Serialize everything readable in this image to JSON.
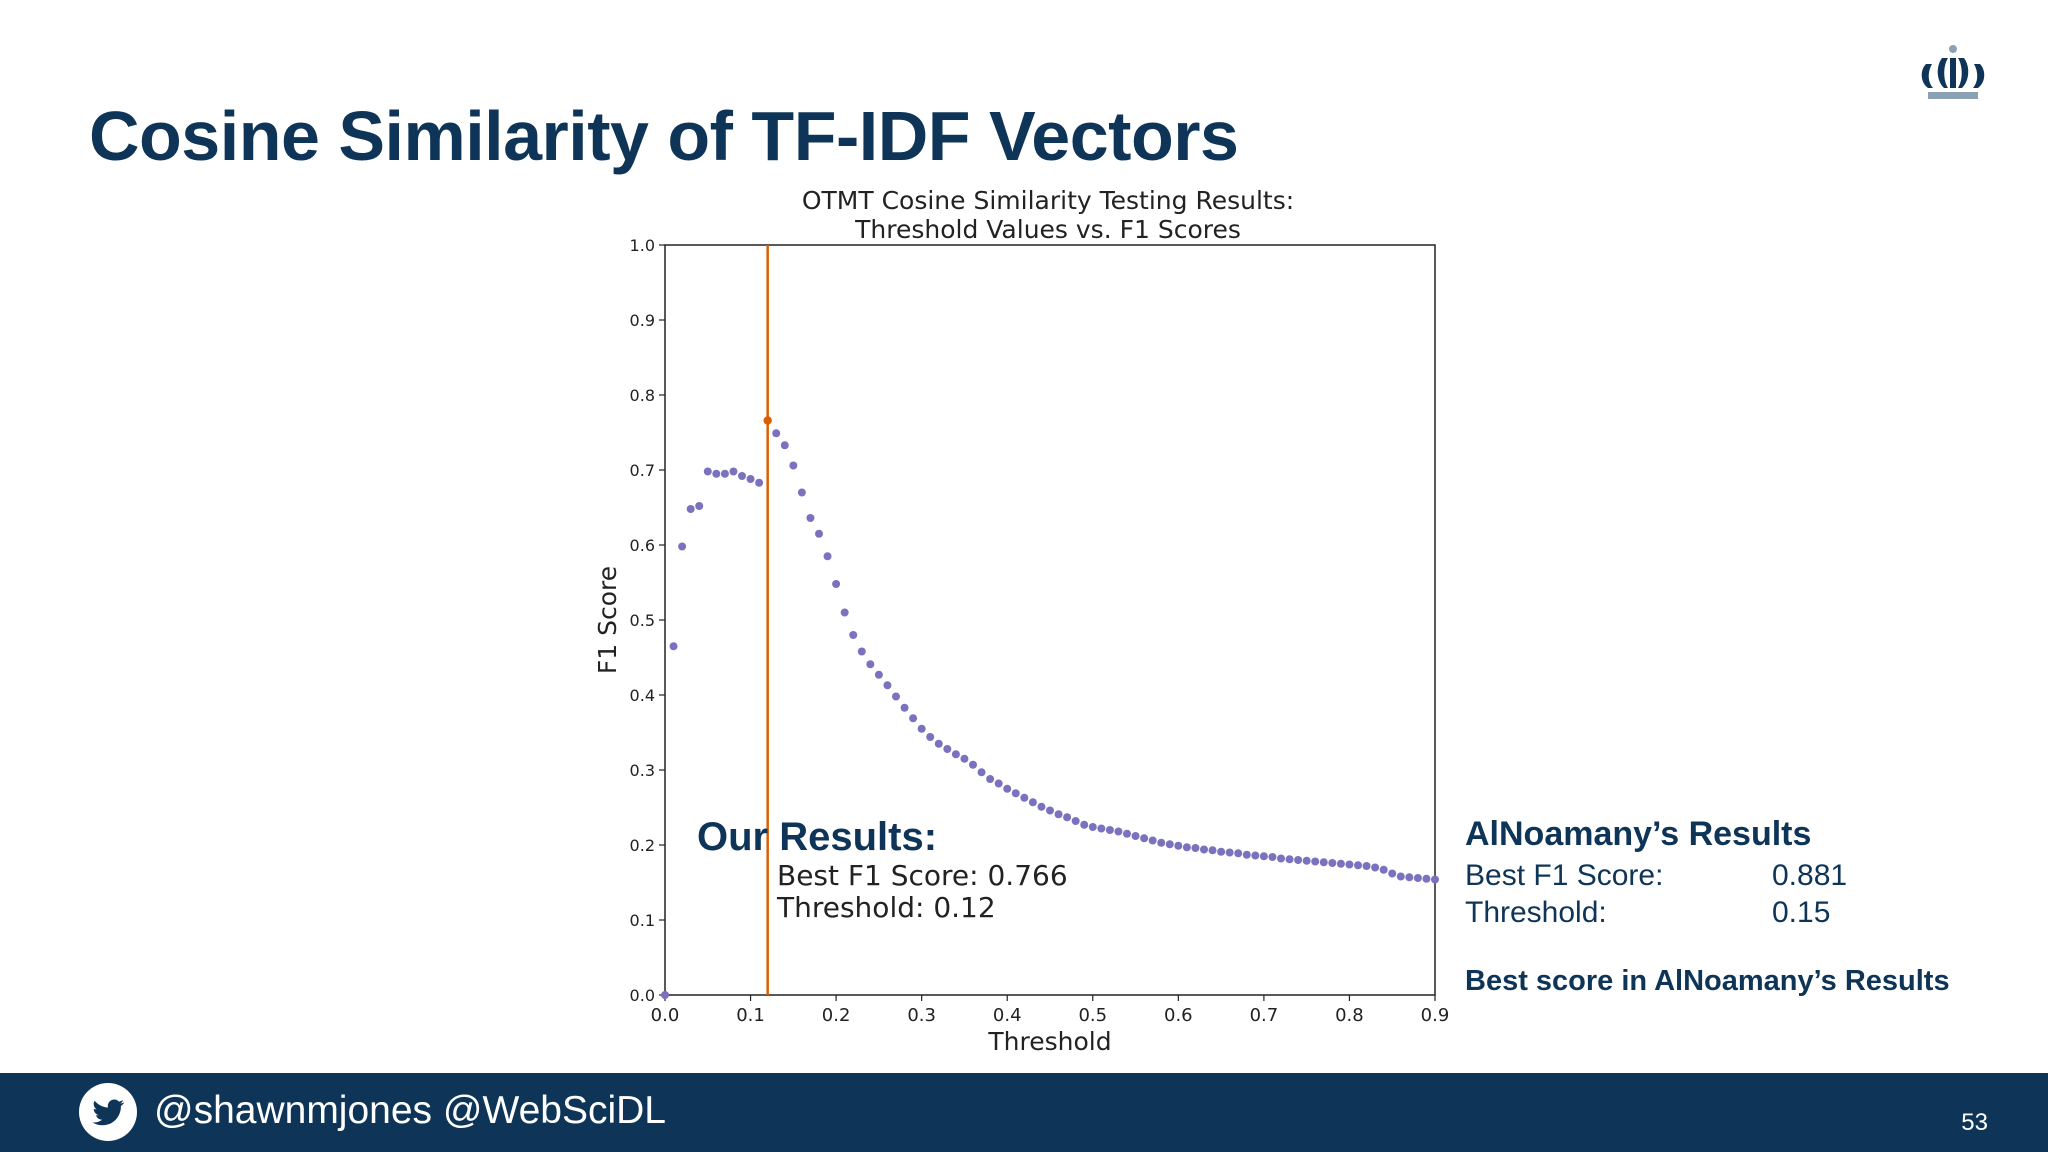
{
  "slide": {
    "title": "Cosine Similarity of TF-IDF Vectors",
    "page_number": "53"
  },
  "footer": {
    "handles": "@shawnmjones @WebSciDL",
    "icon": "twitter-icon"
  },
  "logo": {
    "icon": "crown-logo-icon"
  },
  "our_results": {
    "heading": "Our Results:",
    "best_f1": "Best F1 Score: 0.766",
    "threshold": "Threshold: 0.12"
  },
  "alnoamany_results": {
    "heading": "AlNoamany’s Results",
    "best_f1_label": "Best F1 Score:",
    "best_f1_value": "0.881",
    "threshold_label": "Threshold:",
    "threshold_value": "0.15",
    "note": "Best score in AlNoamany’s Results"
  },
  "colors": {
    "title_navy": "#0e3558",
    "point_purple": "#7b72bf",
    "best_orange": "#d95f02"
  },
  "chart_data": {
    "type": "scatter",
    "title": "OTMT Cosine Similarity Testing Results:",
    "subtitle": "Threshold Values vs. F1 Scores",
    "xlabel": "Threshold",
    "ylabel": "F1 Score",
    "xlim": [
      0.0,
      0.9
    ],
    "ylim": [
      0.0,
      1.0
    ],
    "x_ticks": [
      "0.0",
      "0.1",
      "0.2",
      "0.3",
      "0.4",
      "0.5",
      "0.6",
      "0.7",
      "0.8",
      "0.9"
    ],
    "y_ticks": [
      "0.0",
      "0.1",
      "0.2",
      "0.3",
      "0.4",
      "0.5",
      "0.6",
      "0.7",
      "0.8",
      "0.9",
      "1.0"
    ],
    "grid": false,
    "vline_x": 0.12,
    "best_point": {
      "x": 0.12,
      "y": 0.766
    },
    "series": [
      {
        "x": [
          0.0,
          0.01,
          0.02,
          0.03,
          0.04,
          0.05,
          0.06,
          0.07,
          0.08,
          0.09,
          0.1,
          0.11,
          0.13,
          0.14,
          0.15,
          0.16,
          0.17,
          0.18,
          0.19,
          0.2,
          0.21,
          0.22,
          0.23,
          0.24,
          0.25,
          0.26,
          0.27,
          0.28,
          0.29,
          0.3,
          0.31,
          0.32,
          0.33,
          0.34,
          0.35,
          0.36,
          0.37,
          0.38,
          0.39,
          0.4,
          0.41,
          0.42,
          0.43,
          0.44,
          0.45,
          0.46,
          0.47,
          0.48,
          0.49,
          0.5,
          0.51,
          0.52,
          0.53,
          0.54,
          0.55,
          0.56,
          0.57,
          0.58,
          0.59,
          0.6,
          0.61,
          0.62,
          0.63,
          0.64,
          0.65,
          0.66,
          0.67,
          0.68,
          0.69,
          0.7,
          0.71,
          0.72,
          0.73,
          0.74,
          0.75,
          0.76,
          0.77,
          0.78,
          0.79,
          0.8,
          0.81,
          0.82,
          0.83,
          0.84,
          0.85,
          0.86,
          0.87,
          0.88,
          0.89,
          0.9
        ],
        "y": [
          0.0,
          0.465,
          0.598,
          0.648,
          0.652,
          0.698,
          0.695,
          0.695,
          0.698,
          0.692,
          0.688,
          0.683,
          0.749,
          0.733,
          0.706,
          0.67,
          0.636,
          0.615,
          0.585,
          0.548,
          0.51,
          0.48,
          0.458,
          0.441,
          0.427,
          0.413,
          0.398,
          0.383,
          0.369,
          0.355,
          0.344,
          0.335,
          0.328,
          0.321,
          0.315,
          0.307,
          0.297,
          0.288,
          0.282,
          0.275,
          0.269,
          0.263,
          0.257,
          0.251,
          0.246,
          0.241,
          0.237,
          0.232,
          0.227,
          0.224,
          0.222,
          0.22,
          0.218,
          0.215,
          0.212,
          0.209,
          0.206,
          0.203,
          0.201,
          0.199,
          0.197,
          0.196,
          0.194,
          0.193,
          0.191,
          0.19,
          0.189,
          0.187,
          0.186,
          0.185,
          0.184,
          0.182,
          0.181,
          0.18,
          0.179,
          0.178,
          0.177,
          0.176,
          0.175,
          0.174,
          0.173,
          0.172,
          0.17,
          0.167,
          0.162,
          0.158,
          0.157,
          0.156,
          0.155,
          0.154
        ]
      }
    ]
  }
}
